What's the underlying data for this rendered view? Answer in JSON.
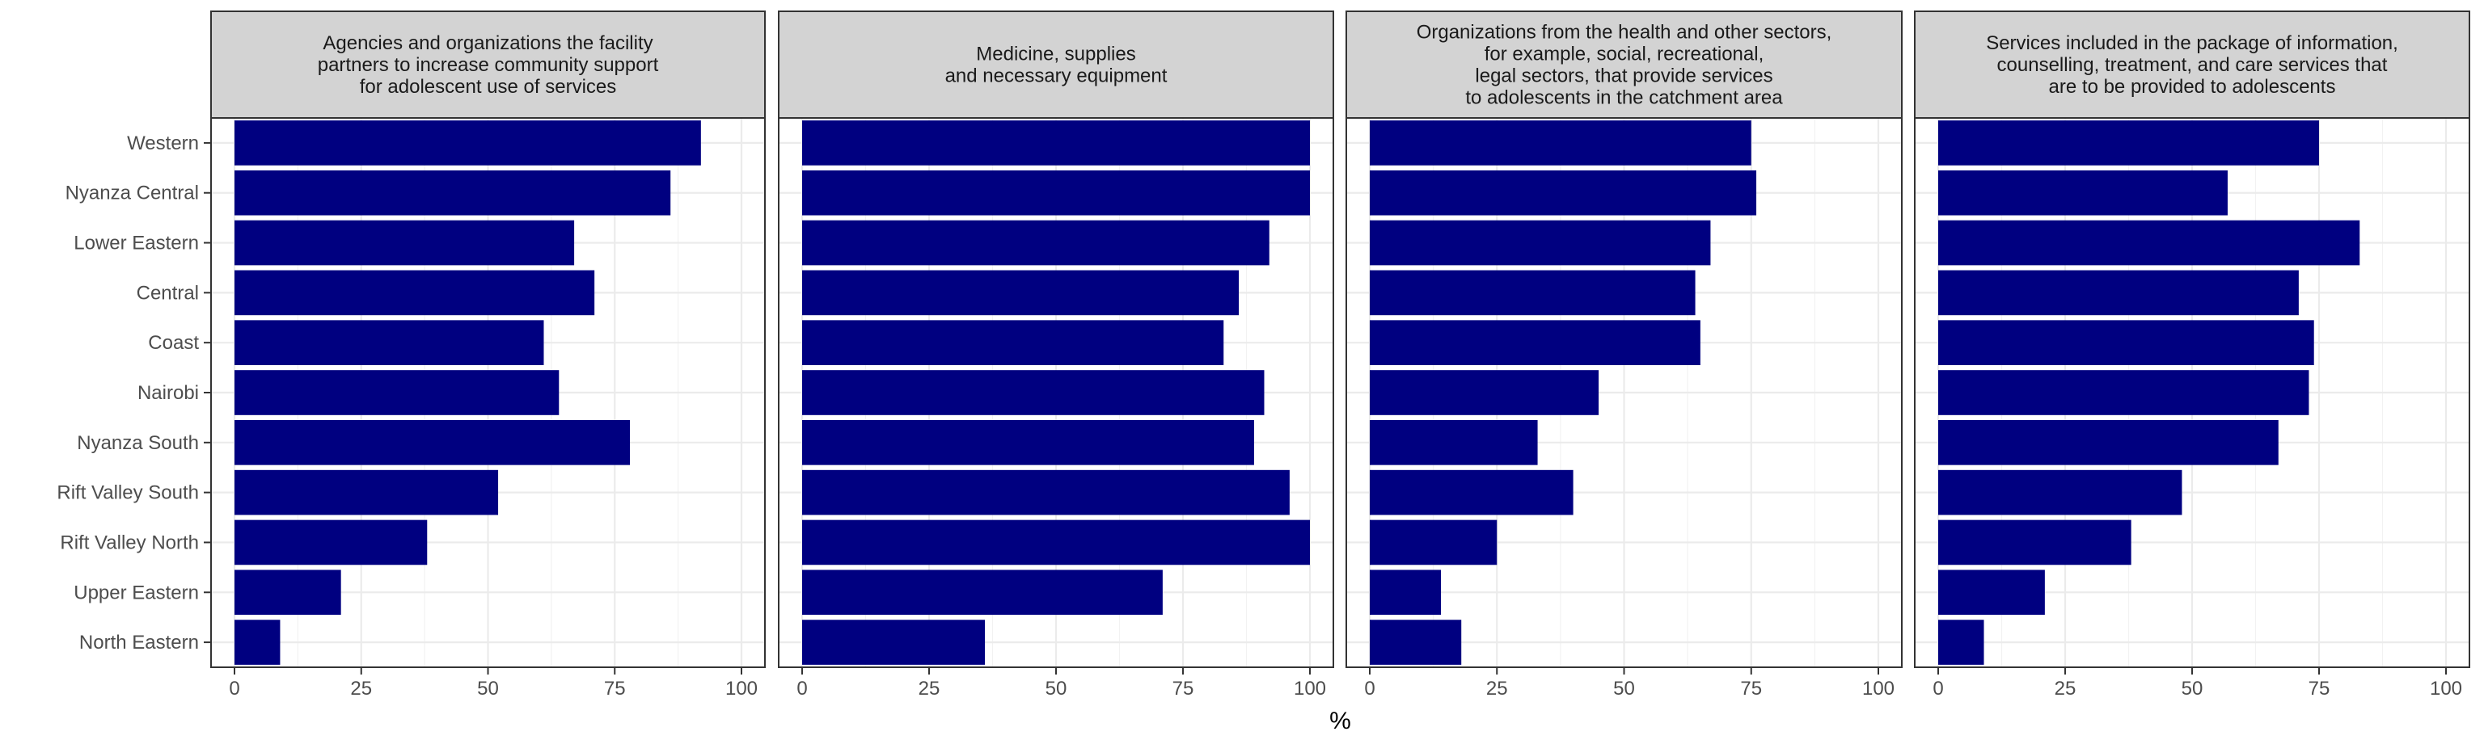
{
  "chart_data": {
    "type": "bar",
    "orientation": "horizontal",
    "xlabel": "%",
    "xlim": [
      0,
      100
    ],
    "xticks": [
      0,
      25,
      50,
      75,
      100
    ],
    "grid": true,
    "bar_color": "#000080",
    "strip_color": "#d3d3d3",
    "categories": [
      "Western",
      "Nyanza Central",
      "Lower Eastern",
      "Central",
      "Coast",
      "Nairobi",
      "Nyanza South",
      "Rift Valley South",
      "Rift Valley North",
      "Upper Eastern",
      "North Eastern"
    ],
    "panels": [
      {
        "title": "Agencies and organizations the facility\npartners to increase community support\nfor adolescent use of services",
        "values": [
          92,
          86,
          67,
          71,
          61,
          64,
          78,
          52,
          38,
          21,
          9
        ]
      },
      {
        "title": "Medicine, supplies\nand necessary equipment",
        "values": [
          100,
          100,
          92,
          86,
          83,
          91,
          89,
          96,
          100,
          71,
          36
        ]
      },
      {
        "title": "Organizations from the health and other sectors,\nfor example, social, recreational,\nlegal sectors, that provide services\nto adolescents in the catchment area",
        "values": [
          75,
          76,
          67,
          64,
          65,
          45,
          33,
          40,
          25,
          14,
          18
        ]
      },
      {
        "title": "Services included in the package of information,\ncounselling, treatment, and care services that\nare to be provided to adolescents",
        "values": [
          75,
          57,
          83,
          71,
          74,
          73,
          67,
          48,
          38,
          21,
          9
        ]
      }
    ]
  }
}
